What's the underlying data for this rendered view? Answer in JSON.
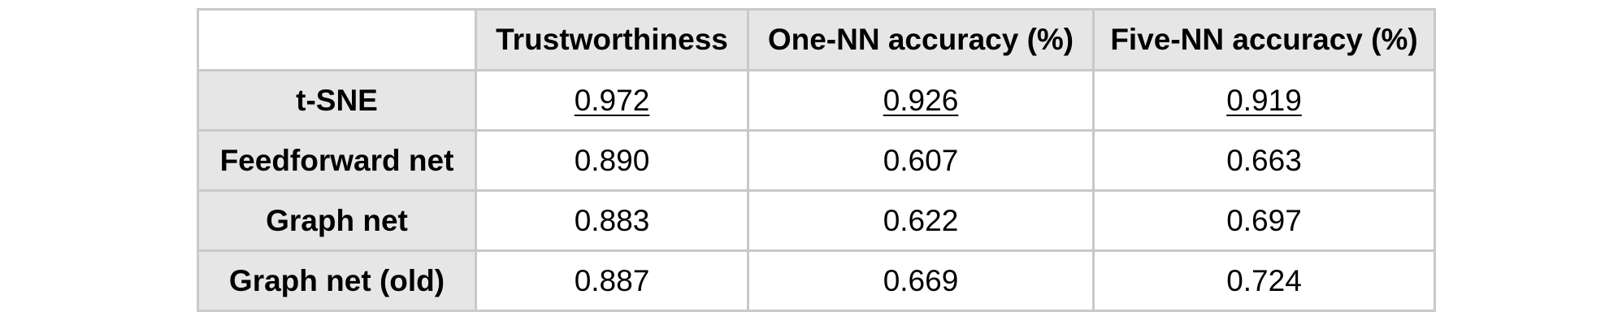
{
  "table": {
    "columns": [
      "",
      "Trustworthiness",
      "One-NN accuracy (%)",
      "Five-NN accuracy (%)"
    ],
    "rows": [
      {
        "method": "t-SNE",
        "values": [
          "0.972",
          "0.926",
          "0.919"
        ],
        "underlined": true
      },
      {
        "method": "Feedforward net",
        "values": [
          "0.890",
          "0.607",
          "0.663"
        ],
        "underlined": false
      },
      {
        "method": "Graph net",
        "values": [
          "0.883",
          "0.622",
          "0.697"
        ],
        "underlined": false
      },
      {
        "method": "Graph net (old)",
        "values": [
          "0.887",
          "0.669",
          "0.724"
        ],
        "underlined": false
      }
    ]
  }
}
